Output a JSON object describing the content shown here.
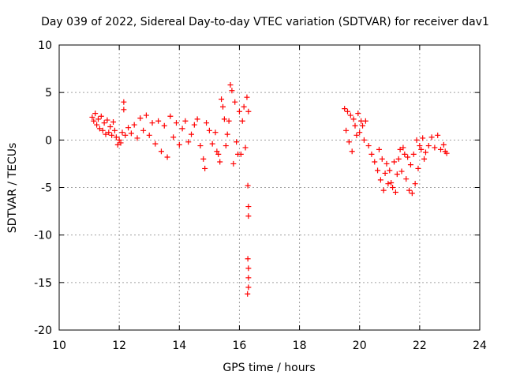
{
  "chart_data": {
    "type": "scatter",
    "title": "Day 039 of 2022, Sidereal Day-to-day VTEC variation (SDTVAR) for receiver dav1",
    "xlabel": "GPS time / hours",
    "ylabel": "SDTVAR / TECUs",
    "xlim": [
      10,
      24
    ],
    "ylim": [
      -20,
      10
    ],
    "x_ticks": [
      "10",
      "12",
      "14",
      "16",
      "18",
      "20",
      "22",
      "24"
    ],
    "y_ticks": [
      "10",
      "5",
      "0",
      "-5",
      "-10",
      "-15",
      "-20"
    ],
    "grid": true,
    "marker": "plus",
    "series": [
      {
        "name": "SDTVAR",
        "color": "#ff0000",
        "points": [
          [
            11.1,
            2.4
          ],
          [
            11.15,
            2.0
          ],
          [
            11.2,
            2.8
          ],
          [
            11.25,
            1.6
          ],
          [
            11.3,
            2.2
          ],
          [
            11.35,
            1.2
          ],
          [
            11.4,
            2.5
          ],
          [
            11.45,
            1.0
          ],
          [
            11.5,
            1.8
          ],
          [
            11.55,
            0.6
          ],
          [
            11.6,
            2.1
          ],
          [
            11.65,
            0.8
          ],
          [
            11.7,
            1.4
          ],
          [
            11.75,
            0.5
          ],
          [
            11.8,
            1.9
          ],
          [
            11.85,
            1.0
          ],
          [
            11.9,
            0.3
          ],
          [
            11.95,
            -0.5
          ],
          [
            12.0,
            0.0
          ],
          [
            12.05,
            -0.3
          ],
          [
            12.1,
            0.8
          ],
          [
            12.15,
            4.0
          ],
          [
            12.15,
            3.2
          ],
          [
            12.2,
            0.5
          ],
          [
            12.3,
            1.3
          ],
          [
            12.4,
            0.7
          ],
          [
            12.5,
            1.6
          ],
          [
            12.6,
            0.2
          ],
          [
            12.7,
            2.3
          ],
          [
            12.8,
            1.0
          ],
          [
            12.9,
            2.6
          ],
          [
            13.0,
            0.5
          ],
          [
            13.1,
            1.8
          ],
          [
            13.2,
            -0.4
          ],
          [
            13.3,
            2.0
          ],
          [
            13.4,
            -1.2
          ],
          [
            13.5,
            1.5
          ],
          [
            13.6,
            -1.8
          ],
          [
            13.7,
            2.5
          ],
          [
            13.8,
            0.3
          ],
          [
            13.9,
            1.8
          ],
          [
            14.0,
            -0.5
          ],
          [
            14.1,
            1.2
          ],
          [
            14.2,
            2.0
          ],
          [
            14.3,
            -0.2
          ],
          [
            14.4,
            0.6
          ],
          [
            14.5,
            1.6
          ],
          [
            14.6,
            2.2
          ],
          [
            14.7,
            -0.6
          ],
          [
            14.8,
            -2.0
          ],
          [
            14.85,
            -3.0
          ],
          [
            14.9,
            1.8
          ],
          [
            15.0,
            1.0
          ],
          [
            15.1,
            -0.4
          ],
          [
            15.2,
            0.8
          ],
          [
            15.25,
            -1.2
          ],
          [
            15.3,
            -1.5
          ],
          [
            15.35,
            -2.3
          ],
          [
            15.4,
            4.3
          ],
          [
            15.45,
            3.5
          ],
          [
            15.5,
            2.2
          ],
          [
            15.55,
            -0.6
          ],
          [
            15.6,
            0.6
          ],
          [
            15.65,
            2.0
          ],
          [
            15.7,
            5.8
          ],
          [
            15.75,
            5.2
          ],
          [
            15.8,
            -2.5
          ],
          [
            15.85,
            4.0
          ],
          [
            15.9,
            -0.2
          ],
          [
            15.95,
            -1.5
          ],
          [
            16.0,
            3.0
          ],
          [
            16.05,
            -1.5
          ],
          [
            16.1,
            2.0
          ],
          [
            16.15,
            3.5
          ],
          [
            16.2,
            -0.8
          ],
          [
            16.25,
            4.5
          ],
          [
            16.3,
            3.0
          ],
          [
            16.28,
            -4.8
          ],
          [
            16.3,
            -7.0
          ],
          [
            16.3,
            -8.0
          ],
          [
            16.28,
            -12.5
          ],
          [
            16.3,
            -13.5
          ],
          [
            16.3,
            -14.5
          ],
          [
            16.3,
            -15.5
          ],
          [
            16.27,
            -16.2
          ],
          [
            19.5,
            3.3
          ],
          [
            19.55,
            1.0
          ],
          [
            19.6,
            3.0
          ],
          [
            19.65,
            -0.2
          ],
          [
            19.7,
            2.6
          ],
          [
            19.75,
            -1.2
          ],
          [
            19.8,
            2.2
          ],
          [
            19.85,
            1.5
          ],
          [
            19.9,
            0.5
          ],
          [
            19.95,
            2.8
          ],
          [
            20.0,
            0.8
          ],
          [
            20.05,
            2.0
          ],
          [
            20.1,
            1.5
          ],
          [
            20.15,
            0.0
          ],
          [
            20.2,
            2.0
          ],
          [
            20.3,
            -0.6
          ],
          [
            20.4,
            -1.5
          ],
          [
            20.5,
            -2.3
          ],
          [
            20.6,
            -3.2
          ],
          [
            20.65,
            -1.0
          ],
          [
            20.7,
            -4.2
          ],
          [
            20.75,
            -2.0
          ],
          [
            20.8,
            -5.3
          ],
          [
            20.85,
            -3.5
          ],
          [
            20.9,
            -2.5
          ],
          [
            20.95,
            -4.6
          ],
          [
            21.0,
            -3.2
          ],
          [
            21.05,
            -4.5
          ],
          [
            21.1,
            -5.0
          ],
          [
            21.15,
            -2.3
          ],
          [
            21.2,
            -5.5
          ],
          [
            21.25,
            -3.6
          ],
          [
            21.3,
            -2.0
          ],
          [
            21.35,
            -1.0
          ],
          [
            21.4,
            -3.3
          ],
          [
            21.45,
            -0.8
          ],
          [
            21.5,
            -1.5
          ],
          [
            21.55,
            -4.1
          ],
          [
            21.6,
            -1.8
          ],
          [
            21.65,
            -5.3
          ],
          [
            21.7,
            -2.6
          ],
          [
            21.75,
            -5.6
          ],
          [
            21.8,
            -1.5
          ],
          [
            21.85,
            -4.6
          ],
          [
            21.9,
            0.0
          ],
          [
            21.95,
            -3.0
          ],
          [
            22.0,
            -0.6
          ],
          [
            22.05,
            -1.0
          ],
          [
            22.1,
            0.2
          ],
          [
            22.15,
            -2.0
          ],
          [
            22.2,
            -1.3
          ],
          [
            22.3,
            -0.6
          ],
          [
            22.4,
            0.3
          ],
          [
            22.5,
            -0.8
          ],
          [
            22.6,
            0.5
          ],
          [
            22.7,
            -1.0
          ],
          [
            22.8,
            -0.5
          ],
          [
            22.85,
            -1.2
          ],
          [
            22.9,
            -1.4
          ]
        ]
      }
    ]
  }
}
